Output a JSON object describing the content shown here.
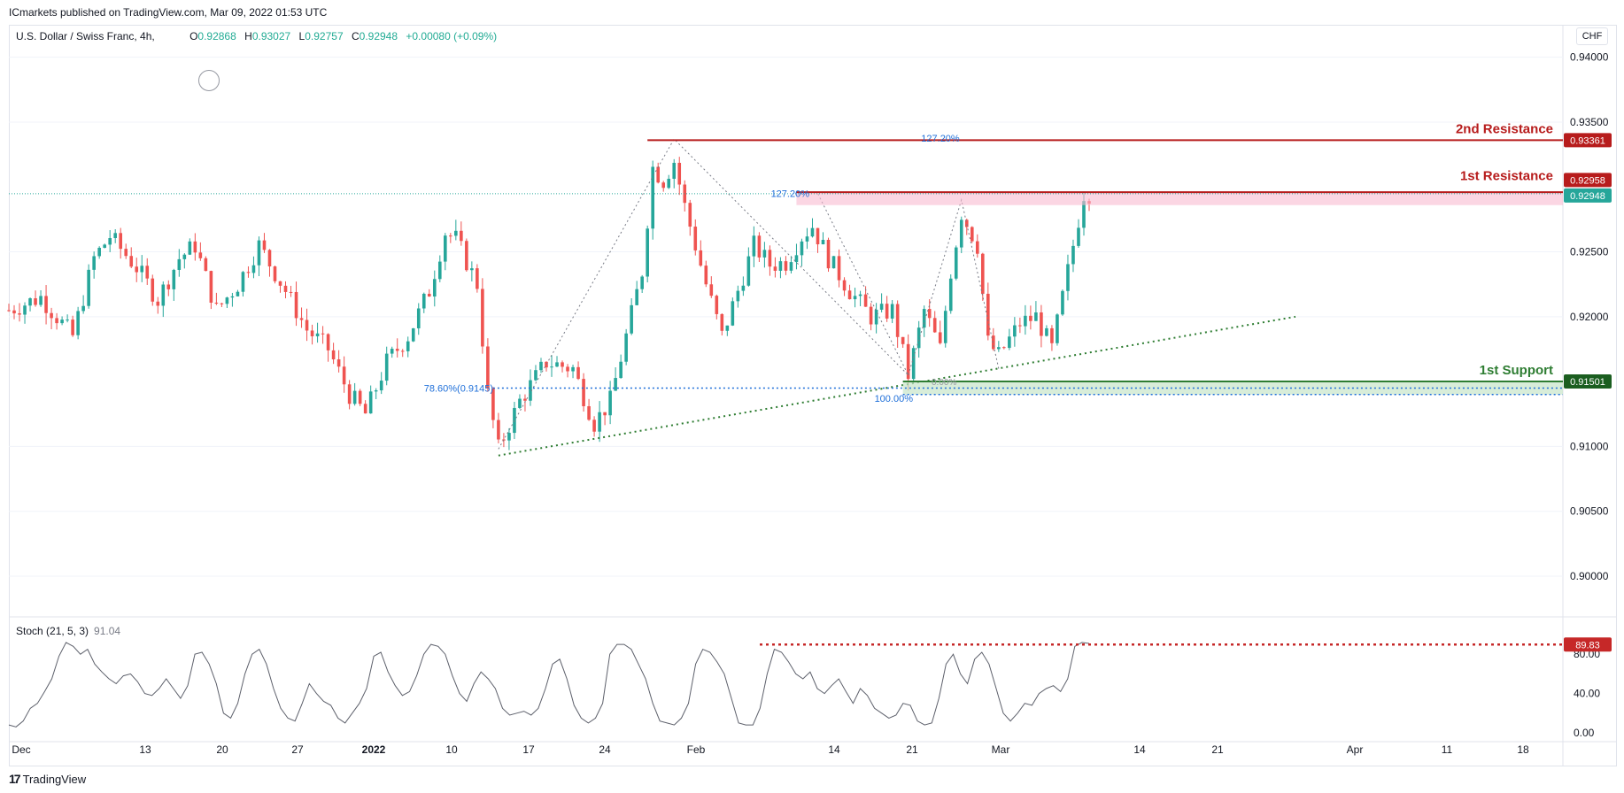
{
  "header": {
    "publisher_line": "ICmarkets published on TradingView.com, Mar 09, 2022 01:53 UTC"
  },
  "legend": {
    "symbol": "U.S. Dollar / Swiss Franc, 4h,",
    "o_label": "O",
    "o_value": "0.92868",
    "h_label": "H",
    "h_value": "0.93027",
    "l_label": "L",
    "l_value": "0.92757",
    "c_label": "C",
    "c_value": "0.92948",
    "change": "+0.00080 (+0.09%)"
  },
  "currency_button": "CHF",
  "stoch": {
    "label": "Stoch (21, 5, 3)",
    "value": "91.04"
  },
  "footer": {
    "brand": "TradingView"
  },
  "colors": {
    "up": "#22ab94",
    "up_fill": "#26a69a",
    "down": "#ef5350",
    "resistance": "#b71c1c",
    "support": "#2e7d32",
    "fib": "#1e6fd9",
    "grid": "#f0f3fa"
  },
  "chart_data": [
    {
      "type": "candlestick",
      "title": "U.S. Dollar / Swiss Franc, 4h",
      "ylim": [
        0.897,
        0.9425
      ],
      "y_ticks": [
        0.94,
        0.935,
        0.9295,
        0.925,
        0.92,
        0.915,
        0.91,
        0.905,
        0.9
      ],
      "y_tick_labels": [
        "0.94000",
        "0.93500",
        "",
        "0.92500",
        "0.92000",
        "",
        "0.91000",
        "0.90500",
        "0.90000"
      ],
      "x_tick_labels": [
        "Dec",
        "13",
        "20",
        "27",
        "2022",
        "10",
        "17",
        "24",
        "Feb",
        "14",
        "21",
        "Mar",
        "14",
        "21",
        "Apr",
        "11",
        "18"
      ],
      "price_path": [
        [
          0,
          0.9205
        ],
        [
          6,
          0.9215
        ],
        [
          12,
          0.9185
        ],
        [
          16,
          0.9245
        ],
        [
          19,
          0.9262
        ],
        [
          24,
          0.9238
        ],
        [
          28,
          0.9213
        ],
        [
          32,
          0.9245
        ],
        [
          35,
          0.9255
        ],
        [
          39,
          0.9205
        ],
        [
          43,
          0.9225
        ],
        [
          47,
          0.9255
        ],
        [
          52,
          0.922
        ],
        [
          56,
          0.919
        ],
        [
          60,
          0.9175
        ],
        [
          64,
          0.914
        ],
        [
          67,
          0.9125
        ],
        [
          71,
          0.9165
        ],
        [
          75,
          0.9185
        ],
        [
          79,
          0.922
        ],
        [
          82,
          0.9265
        ],
        [
          84,
          0.926
        ],
        [
          88,
          0.9225
        ],
        [
          90,
          0.914
        ],
        [
          92,
          0.9098
        ],
        [
          96,
          0.9135
        ],
        [
          101,
          0.9165
        ],
        [
          106,
          0.916
        ],
        [
          110,
          0.9118
        ],
        [
          113,
          0.9135
        ],
        [
          116,
          0.9185
        ],
        [
          119,
          0.9235
        ],
        [
          121,
          0.9315
        ],
        [
          123,
          0.9305
        ],
        [
          125,
          0.932
        ],
        [
          127,
          0.9285
        ],
        [
          129,
          0.9255
        ],
        [
          131,
          0.9225
        ],
        [
          134,
          0.9185
        ],
        [
          137,
          0.922
        ],
        [
          140,
          0.9255
        ],
        [
          143,
          0.924
        ],
        [
          146,
          0.9242
        ],
        [
          149,
          0.9262
        ],
        [
          151,
          0.927
        ],
        [
          154,
          0.9245
        ],
        [
          158,
          0.922
        ],
        [
          162,
          0.92
        ],
        [
          166,
          0.9205
        ],
        [
          169,
          0.9155
        ],
        [
          172,
          0.9205
        ],
        [
          175,
          0.9175
        ],
        [
          177,
          0.9235
        ],
        [
          179,
          0.928
        ],
        [
          182,
          0.9255
        ],
        [
          184,
          0.918
        ],
        [
          186,
          0.917
        ],
        [
          190,
          0.9195
        ],
        [
          193,
          0.92
        ],
        [
          196,
          0.9175
        ],
        [
          198,
          0.9215
        ],
        [
          200,
          0.9255
        ],
        [
          202,
          0.9295
        ]
      ],
      "title_shown": false,
      "levels": [
        {
          "label": "2nd Resistance",
          "value": 0.93361,
          "badge": "0.93361"
        },
        {
          "label": "1st Resistance",
          "value": 0.92958,
          "badge": "0.92958"
        },
        {
          "label": "",
          "value": 0.92948,
          "badge": "0.92948"
        },
        {
          "label": "1st Support",
          "value": 0.91501,
          "badge": "0.91501"
        }
      ],
      "annotations": [
        "127.20%",
        "127.20%",
        "78.60%(0.9145)",
        "100.00%",
        "0.00%"
      ],
      "grid": true
    },
    {
      "type": "line",
      "title": "Stoch (21, 5, 3)",
      "ylim": [
        0,
        100
      ],
      "y_ticks": [
        0,
        40,
        80
      ],
      "y_tick_labels": [
        "0.00",
        "40.00",
        "80.00"
      ],
      "level_label": "89.83",
      "level_value": 89.83,
      "series": [
        {
          "name": "",
          "values": [
            8,
            6,
            12,
            25,
            30,
            42,
            55,
            78,
            92,
            88,
            80,
            85,
            70,
            62,
            55,
            50,
            58,
            60,
            52,
            40,
            38,
            45,
            55,
            45,
            35,
            48,
            80,
            82,
            70,
            50,
            20,
            15,
            30,
            60,
            80,
            85,
            70,
            45,
            25,
            15,
            12,
            30,
            50,
            40,
            32,
            28,
            15,
            10,
            20,
            30,
            45,
            78,
            82,
            62,
            48,
            38,
            42,
            58,
            80,
            90,
            88,
            80,
            58,
            40,
            32,
            50,
            62,
            55,
            45,
            25,
            18,
            20,
            22,
            18,
            25,
            45,
            70,
            75,
            55,
            28,
            15,
            10,
            15,
            30,
            80,
            90,
            90,
            85,
            70,
            55,
            30,
            12,
            10,
            8,
            15,
            30,
            70,
            85,
            82,
            72,
            60,
            35,
            10,
            8,
            8,
            25,
            60,
            85,
            82,
            72,
            60,
            55,
            62,
            45,
            40,
            48,
            55,
            42,
            30,
            45,
            38,
            25,
            20,
            15,
            18,
            30,
            28,
            12,
            8,
            10,
            35,
            70,
            80,
            60,
            50,
            75,
            82,
            70,
            45,
            20,
            12,
            20,
            30,
            28,
            40,
            45,
            48,
            42,
            55,
            88,
            92,
            91
          ]
        }
      ],
      "grid": true
    }
  ]
}
